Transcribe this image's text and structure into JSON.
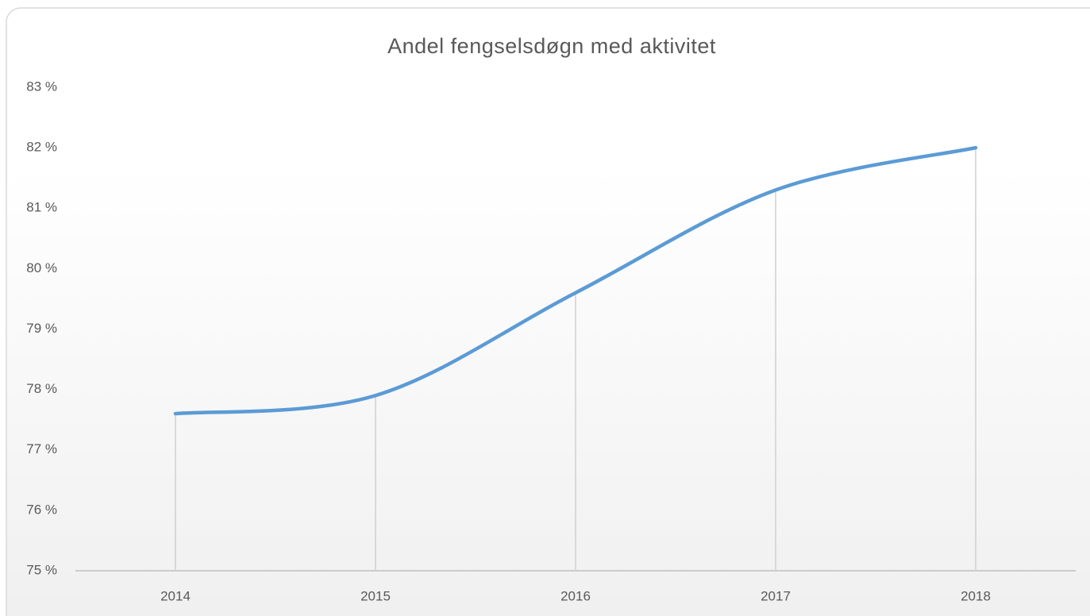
{
  "chart_data": {
    "type": "line",
    "title": "Andel fengselsdøgn med aktivitet",
    "categories": [
      "2014",
      "2015",
      "2016",
      "2017",
      "2018"
    ],
    "series": [
      {
        "name": "Andel fengselsdøgn med aktivitet",
        "color": "#5b9bd5",
        "values": [
          77.6,
          77.9,
          79.6,
          81.3,
          82.0
        ]
      }
    ],
    "ylim": [
      75,
      83
    ],
    "yticks": [
      {
        "value": 75,
        "label": "75 %"
      },
      {
        "value": 76,
        "label": "76 %"
      },
      {
        "value": 77,
        "label": "77 %"
      },
      {
        "value": 78,
        "label": "78 %"
      },
      {
        "value": 79,
        "label": "79 %"
      },
      {
        "value": 80,
        "label": "80 %"
      },
      {
        "value": 81,
        "label": "81 %"
      },
      {
        "value": 82,
        "label": "82 %"
      },
      {
        "value": 83,
        "label": "83 %"
      }
    ],
    "drop_lines": true,
    "smooth": true
  }
}
